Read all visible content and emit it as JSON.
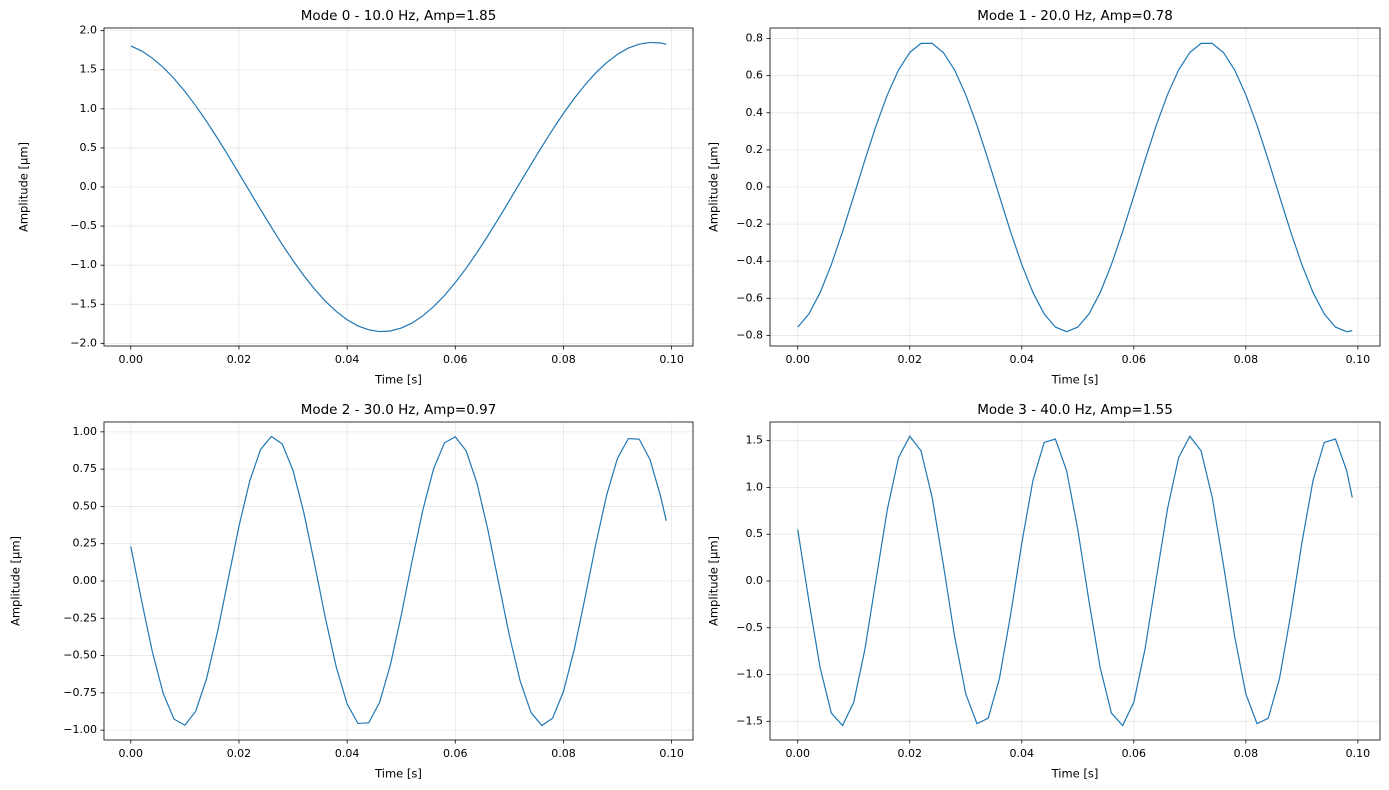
{
  "chart_data": [
    {
      "type": "line",
      "title": "Mode 0 - 10.0 Hz, Amp=1.85",
      "x_label": "Time [s]",
      "y_label": "Amplitude [µm]",
      "color": "#1f77b4",
      "grid": true,
      "x": [
        0,
        0.002,
        0.004,
        0.006,
        0.008,
        0.01,
        0.012,
        0.014,
        0.016,
        0.018,
        0.02,
        0.022,
        0.024,
        0.026,
        0.028,
        0.03,
        0.032,
        0.034,
        0.036,
        0.038,
        0.04,
        0.042,
        0.044,
        0.046,
        0.048,
        0.05,
        0.052,
        0.054,
        0.056,
        0.058,
        0.06,
        0.062,
        0.064,
        0.066,
        0.068,
        0.07,
        0.072,
        0.074,
        0.076,
        0.078,
        0.08,
        0.082,
        0.084,
        0.086,
        0.088,
        0.09,
        0.092,
        0.094,
        0.096,
        0.098,
        0.099
      ],
      "values": [
        1.805,
        1.741,
        1.648,
        1.53,
        1.388,
        1.223,
        1.04,
        0.84,
        0.627,
        0.404,
        0.174,
        -0.058,
        -0.289,
        -0.516,
        -0.735,
        -0.942,
        -1.134,
        -1.308,
        -1.462,
        -1.592,
        -1.698,
        -1.777,
        -1.827,
        -1.849,
        -1.842,
        -1.805,
        -1.741,
        -1.648,
        -1.53,
        -1.388,
        -1.223,
        -1.04,
        -0.84,
        -0.627,
        -0.404,
        -0.174,
        0.058,
        0.289,
        0.516,
        0.735,
        0.942,
        1.134,
        1.308,
        1.462,
        1.592,
        1.698,
        1.777,
        1.827,
        1.849,
        1.842,
        1.827
      ],
      "xlim": [
        -0.00495,
        0.10395
      ],
      "xticks": [
        {
          "value": 0,
          "label": "0.00"
        },
        {
          "value": 0.02,
          "label": "0.02"
        },
        {
          "value": 0.04,
          "label": "0.04"
        },
        {
          "value": 0.06,
          "label": "0.06"
        },
        {
          "value": 0.08,
          "label": "0.08"
        },
        {
          "value": 0.1,
          "label": "0.10"
        }
      ],
      "ylim": [
        -2.034,
        2.034
      ],
      "yticks": [
        {
          "value": -2,
          "label": "−2.0"
        },
        {
          "value": -1.5,
          "label": "−1.5"
        },
        {
          "value": -1,
          "label": "−1.0"
        },
        {
          "value": -0.5,
          "label": "−0.5"
        },
        {
          "value": 0,
          "label": "0.0"
        },
        0.5,
        {
          "value": 1,
          "label": "1.0"
        },
        1.5,
        {
          "value": 2,
          "label": "2.0"
        }
      ]
    },
    {
      "type": "line",
      "title": "Mode 1 - 20.0 Hz, Amp=0.78",
      "x_label": "Time [s]",
      "y_label": "Amplitude [µm]",
      "color": "#1f77b4",
      "grid": true,
      "x": [
        0,
        0.002,
        0.004,
        0.006,
        0.008,
        0.01,
        0.012,
        0.014,
        0.016,
        0.018,
        0.02,
        0.022,
        0.024,
        0.026,
        0.028,
        0.03,
        0.032,
        0.034,
        0.036,
        0.038,
        0.04,
        0.042,
        0.044,
        0.046,
        0.048,
        0.05,
        0.052,
        0.054,
        0.056,
        0.058,
        0.06,
        0.062,
        0.064,
        0.066,
        0.068,
        0.07,
        0.072,
        0.074,
        0.076,
        0.078,
        0.08,
        0.082,
        0.084,
        0.086,
        0.088,
        0.09,
        0.092,
        0.094,
        0.096,
        0.098,
        0.099
      ],
      "values": [
        -0.755,
        -0.684,
        -0.569,
        -0.418,
        -0.241,
        -0.049,
        0.146,
        0.332,
        0.497,
        0.631,
        0.725,
        0.774,
        0.774,
        0.725,
        0.631,
        0.497,
        0.332,
        0.146,
        -0.049,
        -0.241,
        -0.418,
        -0.569,
        -0.684,
        -0.755,
        -0.78,
        -0.755,
        -0.684,
        -0.569,
        -0.418,
        -0.241,
        -0.049,
        0.146,
        0.332,
        0.497,
        0.631,
        0.725,
        0.774,
        0.774,
        0.725,
        0.631,
        0.497,
        0.332,
        0.146,
        -0.049,
        -0.241,
        -0.418,
        -0.569,
        -0.684,
        -0.755,
        -0.78,
        -0.774
      ],
      "xlim": [
        -0.00495,
        0.10395
      ],
      "xticks": [
        {
          "value": 0,
          "label": "0.00"
        },
        {
          "value": 0.02,
          "label": "0.02"
        },
        {
          "value": 0.04,
          "label": "0.04"
        },
        {
          "value": 0.06,
          "label": "0.06"
        },
        {
          "value": 0.08,
          "label": "0.08"
        },
        {
          "value": 0.1,
          "label": "0.10"
        }
      ],
      "ylim": [
        -0.857,
        0.857
      ],
      "yticks": [
        {
          "value": -0.8,
          "label": "−0.8"
        },
        {
          "value": -0.6,
          "label": "−0.6"
        },
        {
          "value": -0.4,
          "label": "−0.4"
        },
        {
          "value": -0.2,
          "label": "−0.2"
        },
        {
          "value": 0,
          "label": "0.0"
        },
        0.2,
        0.4,
        0.6,
        0.8
      ]
    },
    {
      "type": "line",
      "title": "Mode 2 - 30.0 Hz, Amp=0.97",
      "x_label": "Time [s]",
      "y_label": "Amplitude [µm]",
      "color": "#1f77b4",
      "grid": true,
      "x": [
        0,
        0.002,
        0.004,
        0.006,
        0.008,
        0.01,
        0.012,
        0.014,
        0.016,
        0.018,
        0.02,
        0.022,
        0.024,
        0.026,
        0.028,
        0.03,
        0.032,
        0.034,
        0.036,
        0.038,
        0.04,
        0.042,
        0.044,
        0.046,
        0.048,
        0.05,
        0.052,
        0.054,
        0.056,
        0.058,
        0.06,
        0.062,
        0.064,
        0.066,
        0.068,
        0.07,
        0.072,
        0.074,
        0.076,
        0.078,
        0.08,
        0.082,
        0.084,
        0.086,
        0.088,
        0.09,
        0.092,
        0.094,
        0.096,
        0.098,
        0.099
      ],
      "values": [
        0.232,
        -0.132,
        -0.476,
        -0.754,
        -0.926,
        -0.967,
        -0.873,
        -0.657,
        -0.348,
        0.01,
        0.366,
        0.671,
        0.882,
        0.969,
        0.919,
        0.741,
        0.458,
        0.111,
        -0.251,
        -0.578,
        -0.824,
        -0.955,
        -0.951,
        -0.814,
        -0.562,
        -0.231,
        0.132,
        0.476,
        0.754,
        0.926,
        0.967,
        0.873,
        0.657,
        0.348,
        -0.01,
        -0.366,
        -0.671,
        -0.882,
        -0.969,
        -0.919,
        -0.741,
        -0.458,
        -0.111,
        0.251,
        0.578,
        0.824,
        0.955,
        0.951,
        0.814,
        0.562,
        0.404
      ],
      "xlim": [
        -0.00495,
        0.10395
      ],
      "xticks": [
        {
          "value": 0,
          "label": "0.00"
        },
        {
          "value": 0.02,
          "label": "0.02"
        },
        {
          "value": 0.04,
          "label": "0.04"
        },
        {
          "value": 0.06,
          "label": "0.06"
        },
        {
          "value": 0.08,
          "label": "0.08"
        },
        {
          "value": 0.1,
          "label": "0.10"
        }
      ],
      "ylim": [
        -1.066,
        1.066
      ],
      "yticks": [
        {
          "value": -1,
          "label": "−1.00"
        },
        {
          "value": -0.75,
          "label": "−0.75"
        },
        {
          "value": -0.5,
          "label": "−0.50"
        },
        {
          "value": -0.25,
          "label": "−0.25"
        },
        {
          "value": 0,
          "label": "0.00"
        },
        0.25,
        {
          "value": 0.5,
          "label": "0.50"
        },
        0.75,
        {
          "value": 1,
          "label": "1.00"
        }
      ]
    },
    {
      "type": "line",
      "title": "Mode 3 - 40.0 Hz, Amp=1.55",
      "x_label": "Time [s]",
      "y_label": "Amplitude [µm]",
      "color": "#1f77b4",
      "grid": true,
      "x": [
        0,
        0.002,
        0.004,
        0.006,
        0.008,
        0.01,
        0.012,
        0.014,
        0.016,
        0.018,
        0.02,
        0.022,
        0.024,
        0.026,
        0.028,
        0.03,
        0.032,
        0.034,
        0.036,
        0.038,
        0.04,
        0.042,
        0.044,
        0.046,
        0.048,
        0.05,
        0.052,
        0.054,
        0.056,
        0.058,
        0.06,
        0.062,
        0.064,
        0.066,
        0.068,
        0.07,
        0.072,
        0.074,
        0.076,
        0.078,
        0.08,
        0.082,
        0.084,
        0.086,
        0.088,
        0.09,
        0.092,
        0.094,
        0.096,
        0.098,
        0.099
      ],
      "values": [
        0.55,
        -0.216,
        -0.928,
        -1.412,
        -1.545,
        -1.297,
        -0.728,
        0.022,
        0.766,
        1.32,
        1.548,
        1.393,
        0.893,
        0.173,
        -0.591,
        -1.208,
        -1.526,
        -1.467,
        -1.045,
        -0.364,
        0.406,
        1.077,
        1.481,
        1.518,
        1.18,
        0.55,
        -0.216,
        -0.928,
        -1.412,
        -1.545,
        -1.297,
        -0.728,
        0.022,
        0.766,
        1.32,
        1.548,
        1.393,
        0.893,
        0.173,
        -0.591,
        -1.208,
        -1.526,
        -1.467,
        -1.045,
        -0.364,
        0.406,
        1.077,
        1.481,
        1.518,
        1.18,
        0.893
      ],
      "xlim": [
        -0.00495,
        0.10395
      ],
      "xticks": [
        {
          "value": 0,
          "label": "0.00"
        },
        {
          "value": 0.02,
          "label": "0.02"
        },
        {
          "value": 0.04,
          "label": "0.04"
        },
        {
          "value": 0.06,
          "label": "0.06"
        },
        {
          "value": 0.08,
          "label": "0.08"
        },
        {
          "value": 0.1,
          "label": "0.10"
        }
      ],
      "ylim": [
        -1.7,
        1.7
      ],
      "yticks": [
        {
          "value": -1.5,
          "label": "−1.5"
        },
        {
          "value": -1,
          "label": "−1.0"
        },
        {
          "value": -0.5,
          "label": "−0.5"
        },
        {
          "value": 0,
          "label": "0.0"
        },
        0.5,
        {
          "value": 1,
          "label": "1.0"
        },
        1.5
      ]
    }
  ]
}
